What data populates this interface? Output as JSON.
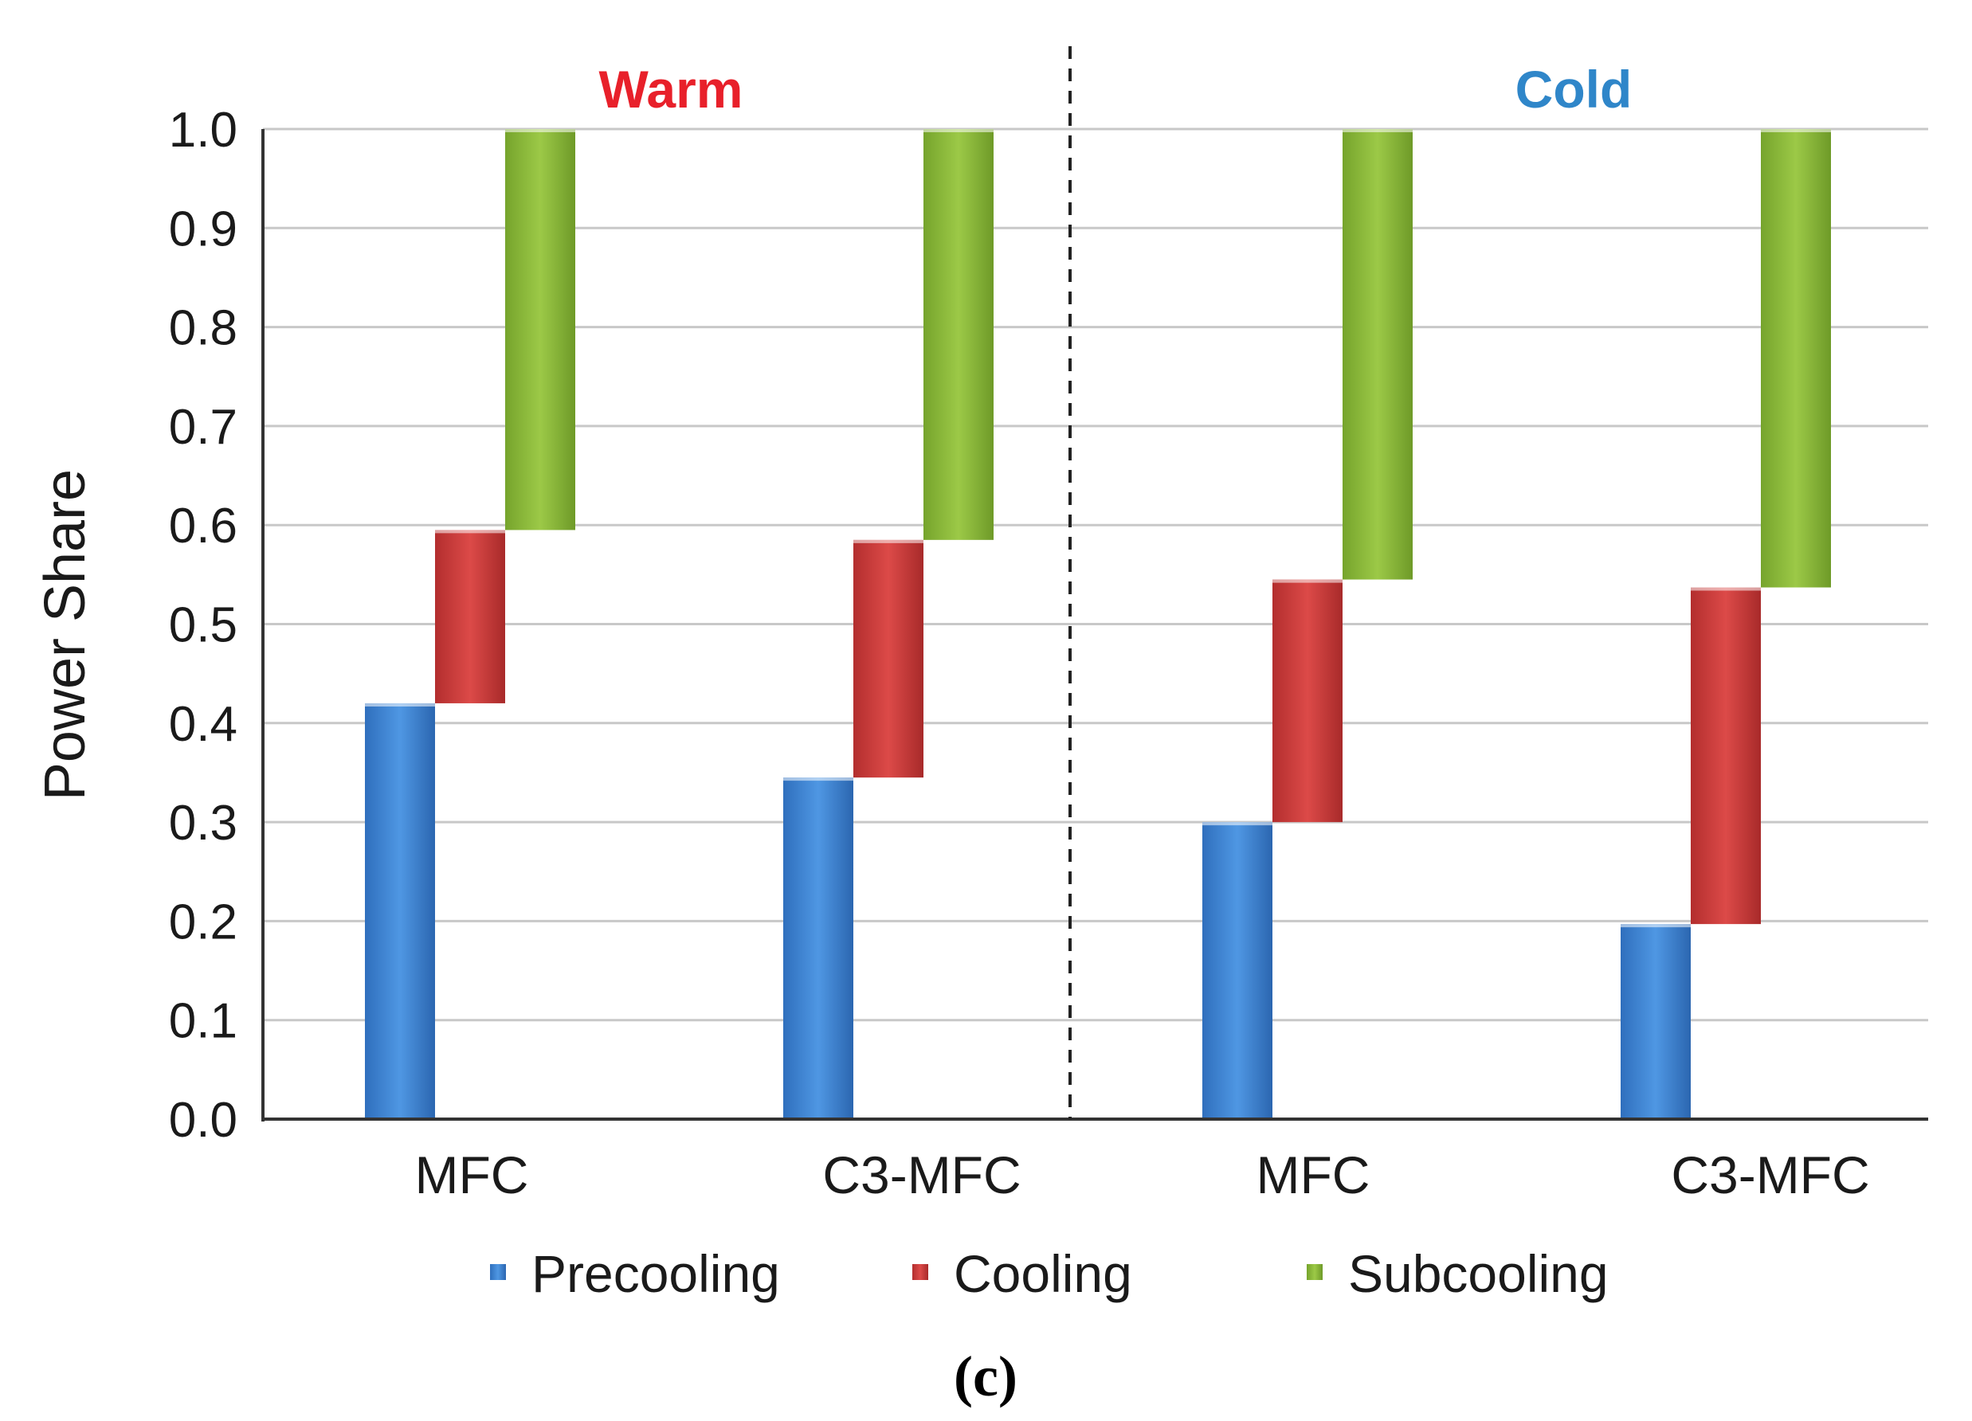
{
  "chart_data": {
    "type": "bar",
    "subtype": "floating-stacked",
    "ylabel": "Power Share",
    "ylim": [
      0,
      1
    ],
    "yticks": [
      "0.0",
      "0.1",
      "0.2",
      "0.3",
      "0.4",
      "0.5",
      "0.6",
      "0.7",
      "0.8",
      "0.9",
      "1.0"
    ],
    "grid": true,
    "regions": [
      {
        "label": "Warm",
        "color": "#e8202a"
      },
      {
        "label": "Cold",
        "color": "#2f86c9"
      }
    ],
    "categories": [
      "MFC",
      "C3-MFC",
      "MFC",
      "C3-MFC"
    ],
    "series": [
      {
        "name": "Precooling",
        "color": "#3f86d6",
        "values": [
          0.42,
          0.345,
          0.3,
          0.197
        ]
      },
      {
        "name": "Cooling",
        "color": "#cf3b3b",
        "values": [
          0.175,
          0.24,
          0.245,
          0.34
        ]
      },
      {
        "name": "Subcooling",
        "color": "#8dbb3a",
        "values": [
          0.405,
          0.415,
          0.455,
          0.463
        ]
      }
    ],
    "legend_position": "bottom",
    "caption": "(c)"
  }
}
